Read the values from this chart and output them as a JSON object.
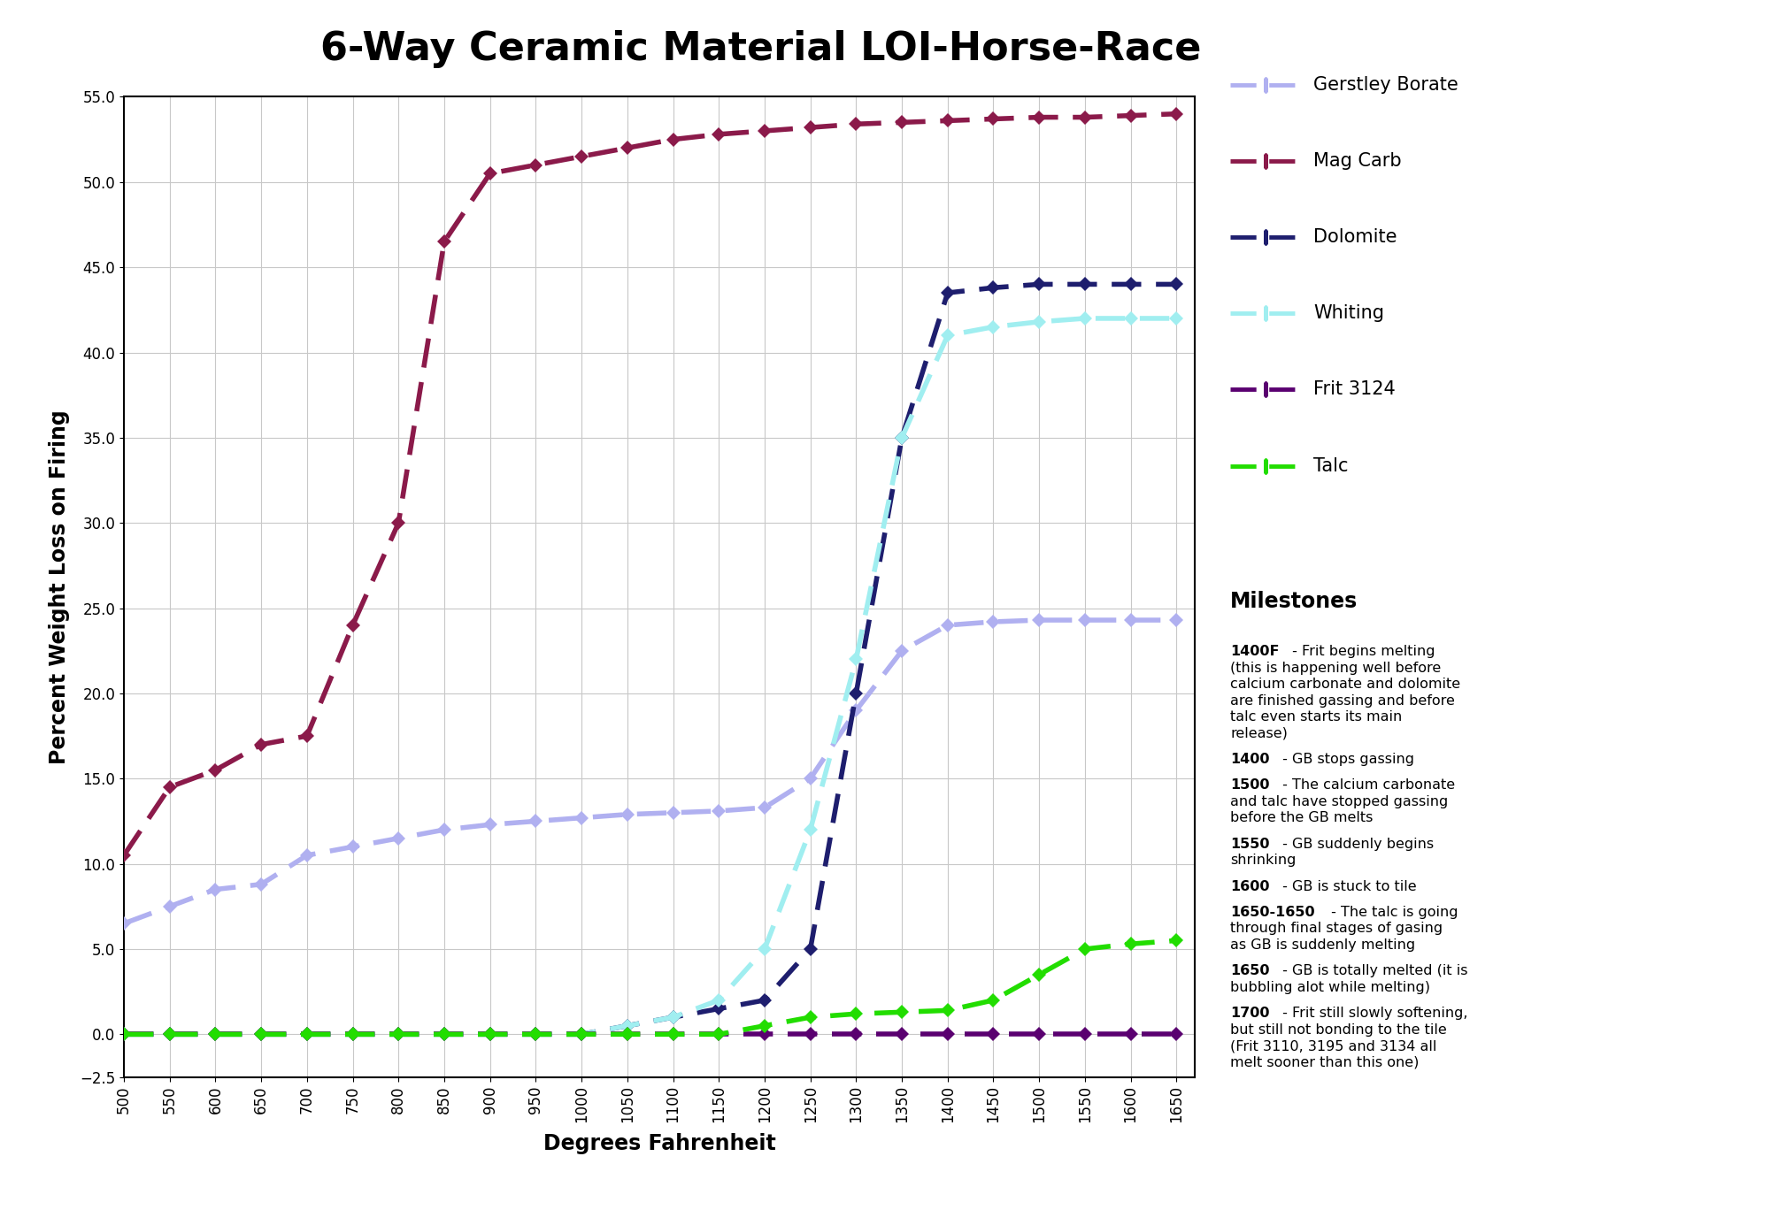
{
  "title": "6-Way Ceramic Material LOI-Horse-Race",
  "xlabel": "Degrees Fahrenheit",
  "ylabel": "Percent Weight Loss on Firing",
  "xlim": [
    500,
    1670
  ],
  "ylim": [
    -2.5,
    55
  ],
  "xticks": [
    500,
    550,
    600,
    650,
    700,
    750,
    800,
    850,
    900,
    950,
    1000,
    1050,
    1100,
    1150,
    1200,
    1250,
    1300,
    1350,
    1400,
    1450,
    1500,
    1550,
    1600,
    1650
  ],
  "yticks": [
    -2.5,
    0,
    5,
    10,
    15,
    20,
    25,
    30,
    35,
    40,
    45,
    50,
    55
  ],
  "background_color": "#ffffff",
  "grid_color": "#c8c8c8",
  "series_order": [
    "Gerstley Borate",
    "Mag Carb",
    "Dolomite",
    "Whiting",
    "Frit 3124",
    "Talc"
  ],
  "series": {
    "Gerstley Borate": {
      "color": "#b0b0f0",
      "x": [
        500,
        550,
        600,
        650,
        700,
        750,
        800,
        850,
        900,
        950,
        1000,
        1050,
        1100,
        1150,
        1200,
        1250,
        1300,
        1350,
        1400,
        1450,
        1500,
        1550,
        1600,
        1650
      ],
      "y": [
        6.5,
        7.5,
        8.5,
        8.8,
        10.5,
        11.0,
        11.5,
        12.0,
        12.3,
        12.5,
        12.7,
        12.9,
        13.0,
        13.1,
        13.3,
        15.0,
        19.0,
        22.5,
        24.0,
        24.2,
        24.3,
        24.3,
        24.3,
        24.3
      ]
    },
    "Mag Carb": {
      "color": "#8b1a4a",
      "x": [
        500,
        550,
        600,
        650,
        700,
        750,
        800,
        850,
        900,
        950,
        1000,
        1050,
        1100,
        1150,
        1200,
        1250,
        1300,
        1350,
        1400,
        1450,
        1500,
        1550,
        1600,
        1650
      ],
      "y": [
        10.5,
        14.5,
        15.5,
        17.0,
        17.5,
        24.0,
        30.0,
        46.5,
        50.5,
        51.0,
        51.5,
        52.0,
        52.5,
        52.8,
        53.0,
        53.2,
        53.4,
        53.5,
        53.6,
        53.7,
        53.8,
        53.8,
        53.9,
        54.0
      ]
    },
    "Dolomite": {
      "color": "#1e1e6e",
      "x": [
        500,
        550,
        600,
        650,
        700,
        750,
        800,
        850,
        900,
        950,
        1000,
        1050,
        1100,
        1150,
        1200,
        1250,
        1300,
        1350,
        1400,
        1450,
        1500,
        1550,
        1600,
        1650
      ],
      "y": [
        0.0,
        0.0,
        0.0,
        0.0,
        0.0,
        0.0,
        0.0,
        0.0,
        0.0,
        0.0,
        0.0,
        0.5,
        1.0,
        1.5,
        2.0,
        5.0,
        20.0,
        35.0,
        43.5,
        43.8,
        44.0,
        44.0,
        44.0,
        44.0
      ]
    },
    "Whiting": {
      "color": "#a0eef0",
      "x": [
        500,
        550,
        600,
        650,
        700,
        750,
        800,
        850,
        900,
        950,
        1000,
        1050,
        1100,
        1150,
        1200,
        1250,
        1300,
        1350,
        1400,
        1450,
        1500,
        1550,
        1600,
        1650
      ],
      "y": [
        0.0,
        0.0,
        0.0,
        0.0,
        0.0,
        0.0,
        0.0,
        0.0,
        0.0,
        0.0,
        0.0,
        0.5,
        1.0,
        2.0,
        5.0,
        12.0,
        22.0,
        35.0,
        41.0,
        41.5,
        41.8,
        42.0,
        42.0,
        42.0
      ]
    },
    "Frit 3124": {
      "color": "#5a0070",
      "x": [
        500,
        550,
        600,
        650,
        700,
        750,
        800,
        850,
        900,
        950,
        1000,
        1050,
        1100,
        1150,
        1200,
        1250,
        1300,
        1350,
        1400,
        1450,
        1500,
        1550,
        1600,
        1650
      ],
      "y": [
        0.0,
        0.0,
        0.0,
        0.0,
        0.0,
        0.0,
        0.0,
        0.0,
        0.0,
        0.0,
        0.0,
        0.0,
        0.0,
        0.0,
        0.0,
        0.0,
        0.0,
        0.0,
        0.0,
        0.0,
        0.0,
        0.0,
        0.0,
        0.0
      ]
    },
    "Talc": {
      "color": "#22dd00",
      "x": [
        500,
        550,
        600,
        650,
        700,
        750,
        800,
        850,
        900,
        950,
        1000,
        1050,
        1100,
        1150,
        1200,
        1250,
        1300,
        1350,
        1400,
        1450,
        1500,
        1550,
        1600,
        1650
      ],
      "y": [
        0.0,
        0.0,
        0.0,
        0.0,
        0.0,
        0.0,
        0.0,
        0.0,
        0.0,
        0.0,
        0.0,
        0.0,
        0.0,
        0.0,
        0.5,
        1.0,
        1.2,
        1.3,
        1.4,
        2.0,
        3.5,
        5.0,
        5.3,
        5.5
      ]
    }
  },
  "milestones": [
    {
      "label": "1400F",
      "rest": " - Frit begins melting\n(this is happening well before\ncalcium carbonate and dolomite\nare finished gassing and before\ntalc even starts its main\nrelease)"
    },
    {
      "label": "1400",
      "rest": " - GB stops gassing"
    },
    {
      "label": "1500",
      "rest": " - The calcium carbonate\nand talc have stopped gassing\nbefore the GB melts"
    },
    {
      "label": "1550",
      "rest": " - GB suddenly begins\nshrinking"
    },
    {
      "label": "1600",
      "rest": " - GB is stuck to tile"
    },
    {
      "label": "1650-1650",
      "rest": " - The talc is going\nthrough final stages of gasing\nas GB is suddenly melting"
    },
    {
      "label": "1650",
      "rest": " - GB is totally melted (it is\nbubbling alot while melting)"
    },
    {
      "label": "1700",
      "rest": " - Frit still slowly softening,\nbut still not bonding to the tile\n(Frit 3110, 3195 and 3134 all\nmelt sooner than this one)"
    }
  ],
  "title_fontsize": 32,
  "axis_label_fontsize": 17,
  "tick_fontsize": 12,
  "legend_fontsize": 15,
  "milestone_header_fontsize": 17,
  "milestone_fontsize": 11.5
}
